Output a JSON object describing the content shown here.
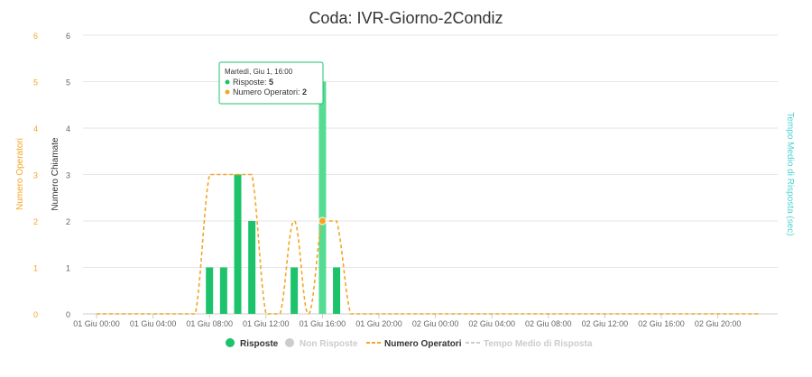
{
  "chart_data": {
    "type": "bar",
    "title": "Coda: IVR-Giorno-2Condiz",
    "y_left_outer_label": "Numero Operatori",
    "y_left_inner_label": "Numero Chiamate",
    "y_right_label": "Tempo Medio di Risposta (sec)",
    "ylim": [
      0,
      6
    ],
    "y_ticks": [
      "0",
      "1",
      "2",
      "3",
      "4",
      "5",
      "6"
    ],
    "x_ticks": [
      "01 Giu 00:00",
      "01 Giu 04:00",
      "01 Giu 08:00",
      "01 Giu 12:00",
      "01 Giu 16:00",
      "01 Giu 20:00",
      "02 Giu 00:00",
      "02 Giu 04:00",
      "02 Giu 08:00",
      "02 Giu 12:00",
      "02 Giu 16:00",
      "02 Giu 20:00"
    ],
    "x_range_hours": [
      0,
      47
    ],
    "series": [
      {
        "name": "Risposte",
        "kind": "bar",
        "color": "#1cc36b",
        "points": [
          [
            8,
            1
          ],
          [
            9,
            1
          ],
          [
            10,
            3
          ],
          [
            11,
            2
          ],
          [
            14,
            1
          ],
          [
            16,
            5
          ],
          [
            17,
            1
          ]
        ]
      },
      {
        "name": "Numero Operatori",
        "kind": "dashed-line",
        "color": "#f5a623",
        "points": [
          [
            0,
            0
          ],
          [
            1,
            0
          ],
          [
            2,
            0
          ],
          [
            3,
            0
          ],
          [
            4,
            0
          ],
          [
            5,
            0
          ],
          [
            6,
            0
          ],
          [
            7,
            0
          ],
          [
            8,
            3
          ],
          [
            9,
            3
          ],
          [
            10,
            3
          ],
          [
            11,
            3
          ],
          [
            12,
            0
          ],
          [
            13,
            0
          ],
          [
            14,
            2
          ],
          [
            15,
            0
          ],
          [
            16,
            2
          ],
          [
            17,
            2
          ],
          [
            18,
            0
          ],
          [
            19,
            0
          ],
          [
            20,
            0
          ],
          [
            21,
            0
          ],
          [
            22,
            0
          ],
          [
            23,
            0
          ],
          [
            24,
            0
          ],
          [
            25,
            0
          ],
          [
            26,
            0
          ],
          [
            27,
            0
          ],
          [
            28,
            0
          ],
          [
            29,
            0
          ],
          [
            30,
            0
          ],
          [
            31,
            0
          ],
          [
            32,
            0
          ],
          [
            33,
            0
          ],
          [
            34,
            0
          ],
          [
            35,
            0
          ],
          [
            36,
            0
          ],
          [
            37,
            0
          ],
          [
            38,
            0
          ],
          [
            39,
            0
          ],
          [
            40,
            0
          ],
          [
            41,
            0
          ],
          [
            42,
            0
          ],
          [
            43,
            0
          ],
          [
            44,
            0
          ],
          [
            45,
            0
          ],
          [
            46,
            0
          ],
          [
            47,
            0
          ]
        ]
      }
    ],
    "legend": [
      {
        "name": "Risposte",
        "symbol": "dot",
        "color": "#1cc36b",
        "active": true
      },
      {
        "name": "Non Risposte",
        "symbol": "dot",
        "color": "#cccccc",
        "active": false
      },
      {
        "name": "Numero Operatori",
        "symbol": "dash",
        "color": "#f5a623",
        "active": true
      },
      {
        "name": "Tempo Medio di Risposta",
        "symbol": "dash",
        "color": "#cccccc",
        "active": false
      }
    ],
    "legend_position": "bottom-center",
    "grid": true,
    "tooltip": {
      "header": "Martedì, Giu 1, 16:00",
      "rows": [
        {
          "label": "Risposte",
          "value": "5",
          "color": "#1cc36b"
        },
        {
          "label": "Numero Operatori",
          "value": "2",
          "color": "#f5a623"
        }
      ],
      "anchor_hour": 16
    },
    "colors": {
      "left_outer_axis": "#f5a623",
      "right_axis": "#4fd3d3",
      "grid": "#e6e6e6",
      "text": "#666666",
      "title": "#333333",
      "highlight_bar": "#54dc93"
    }
  }
}
